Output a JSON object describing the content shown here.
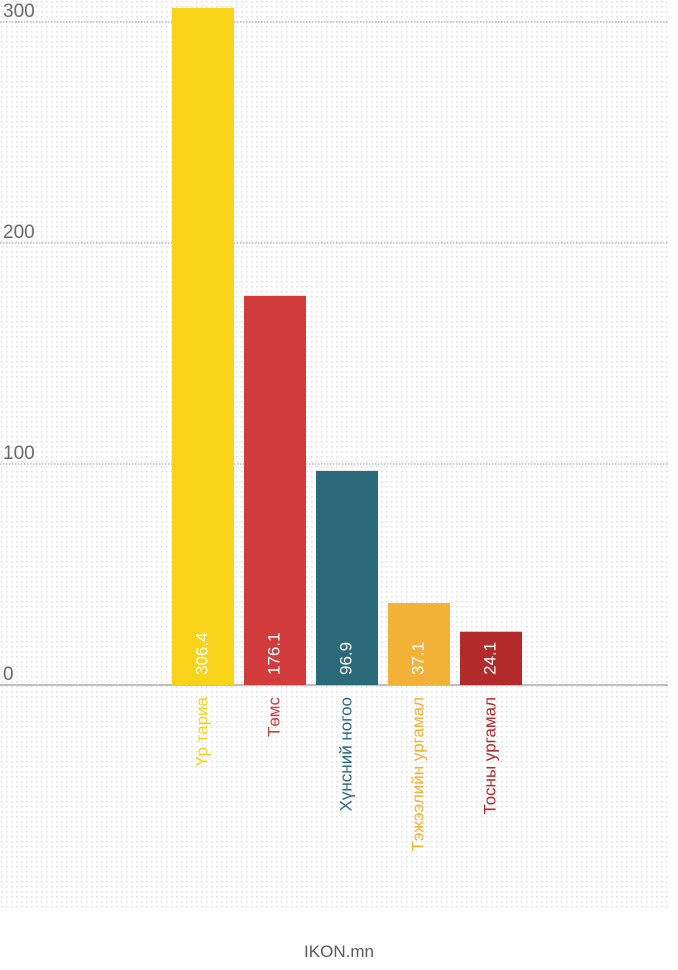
{
  "footer": {
    "credit": "IKON.mn"
  },
  "colors": {
    "background_dots": "#e3e3e3",
    "gridline": "#9a9a9a",
    "baseline": "#9a9a9a",
    "tick_label": "#6b6b6b",
    "bar_value_label": "#ffffff"
  },
  "chart_data": {
    "type": "bar",
    "title": "",
    "xlabel": "",
    "ylabel": "",
    "ylim": [
      0,
      300
    ],
    "yticks": [
      "0",
      "100",
      "200",
      "300"
    ],
    "grid": true,
    "legend": "none",
    "categories": [
      "Үр тариа",
      "Төмс",
      "Хүнсний ногоо",
      "Тэжээлийн ургамал",
      "Тосны ургамал"
    ],
    "values": [
      306.4,
      176.1,
      96.9,
      37.1,
      24.1
    ],
    "value_labels": [
      "306.4",
      "176.1",
      "96.9",
      "37.1",
      "24.1"
    ],
    "bar_colors": [
      "#f9d21a",
      "#d13b3b",
      "#2b6a7a",
      "#f2b238",
      "#b22a2a"
    ]
  }
}
